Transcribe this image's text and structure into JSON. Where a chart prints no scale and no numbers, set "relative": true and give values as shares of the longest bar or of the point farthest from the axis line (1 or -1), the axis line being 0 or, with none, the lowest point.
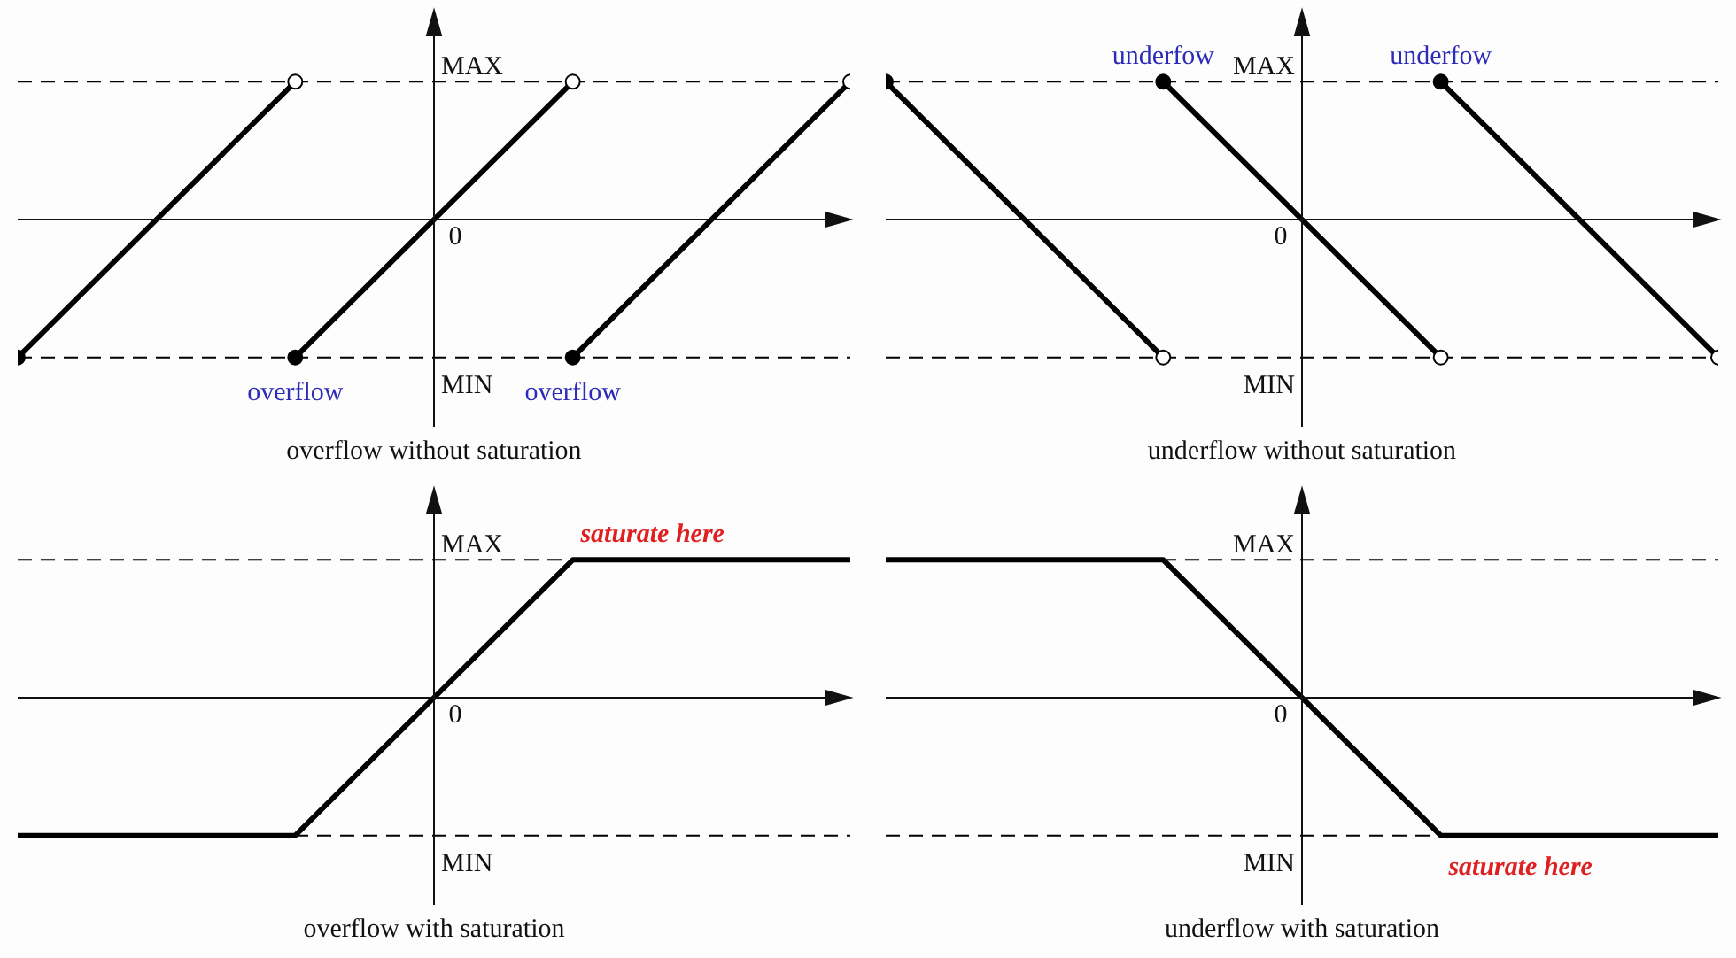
{
  "chart_data": [
    {
      "type": "line",
      "title": "overflow without saturation",
      "relative": true,
      "marker": "circle",
      "line_style": "solid",
      "categories": [
        null,
        null,
        null,
        null
      ],
      "series": [
        {
          "color": "#000000",
          "values": [
            -1,
            1,
            null,
            null
          ]
        },
        {
          "color": "#000000",
          "values": [
            null,
            -1,
            1,
            null
          ]
        },
        {
          "color": "#000000",
          "values": [
            null,
            null,
            -1,
            1
          ]
        }
      ],
      "ref_lines": [
        {
          "axis": "y",
          "value": 1,
          "label": "MAX",
          "line_style": "dashed",
          "color": "#000000"
        },
        {
          "axis": "y",
          "value": -1,
          "label": "MIN",
          "line_style": "dashed",
          "color": "#000000"
        }
      ],
      "annotations": [
        "0",
        {
          "text": "overflow",
          "y": -1
        },
        {
          "text": "overflow",
          "y": -1
        }
      ]
    },
    {
      "type": "line",
      "title": "underflow without saturation",
      "relative": true,
      "marker": "circle",
      "line_style": "solid",
      "categories": [
        null,
        null,
        null,
        null
      ],
      "series": [
        {
          "color": "#000000",
          "values": [
            1,
            -1,
            null,
            null
          ]
        },
        {
          "color": "#000000",
          "values": [
            null,
            1,
            -1,
            null
          ]
        },
        {
          "color": "#000000",
          "values": [
            null,
            null,
            1,
            -1
          ]
        }
      ],
      "ref_lines": [
        {
          "axis": "y",
          "value": 1,
          "label": "MAX",
          "line_style": "dashed",
          "color": "#000000"
        },
        {
          "axis": "y",
          "value": -1,
          "label": "MIN",
          "line_style": "dashed",
          "color": "#000000"
        }
      ],
      "annotations": [
        "0",
        {
          "text": "underfow",
          "y": 1
        },
        {
          "text": "underfow",
          "y": 1
        }
      ]
    },
    {
      "type": "line",
      "title": "overflow with saturation",
      "relative": true,
      "line_style": "solid",
      "categories": [
        null,
        null,
        null,
        null
      ],
      "series": [
        {
          "color": "#000000",
          "values": [
            -1,
            -1,
            1,
            1
          ]
        }
      ],
      "ref_lines": [
        {
          "axis": "y",
          "value": 1,
          "label": "MAX",
          "line_style": "dashed",
          "color": "#000000"
        },
        {
          "axis": "y",
          "value": -1,
          "label": "MIN",
          "line_style": "dashed",
          "color": "#000000"
        }
      ],
      "annotations": [
        "0",
        {
          "text": "saturate here",
          "y": 1
        }
      ]
    },
    {
      "type": "line",
      "title": "underflow with saturation",
      "relative": true,
      "line_style": "solid",
      "categories": [
        null,
        null,
        null,
        null
      ],
      "series": [
        {
          "color": "#000000",
          "values": [
            1,
            1,
            -1,
            -1
          ]
        }
      ],
      "ref_lines": [
        {
          "axis": "y",
          "value": 1,
          "label": "MAX",
          "line_style": "dashed",
          "color": "#000000"
        },
        {
          "axis": "y",
          "value": -1,
          "label": "MIN",
          "line_style": "dashed",
          "color": "#000000"
        }
      ],
      "annotations": [
        "0",
        {
          "text": "saturate here",
          "y": -1
        }
      ]
    }
  ]
}
